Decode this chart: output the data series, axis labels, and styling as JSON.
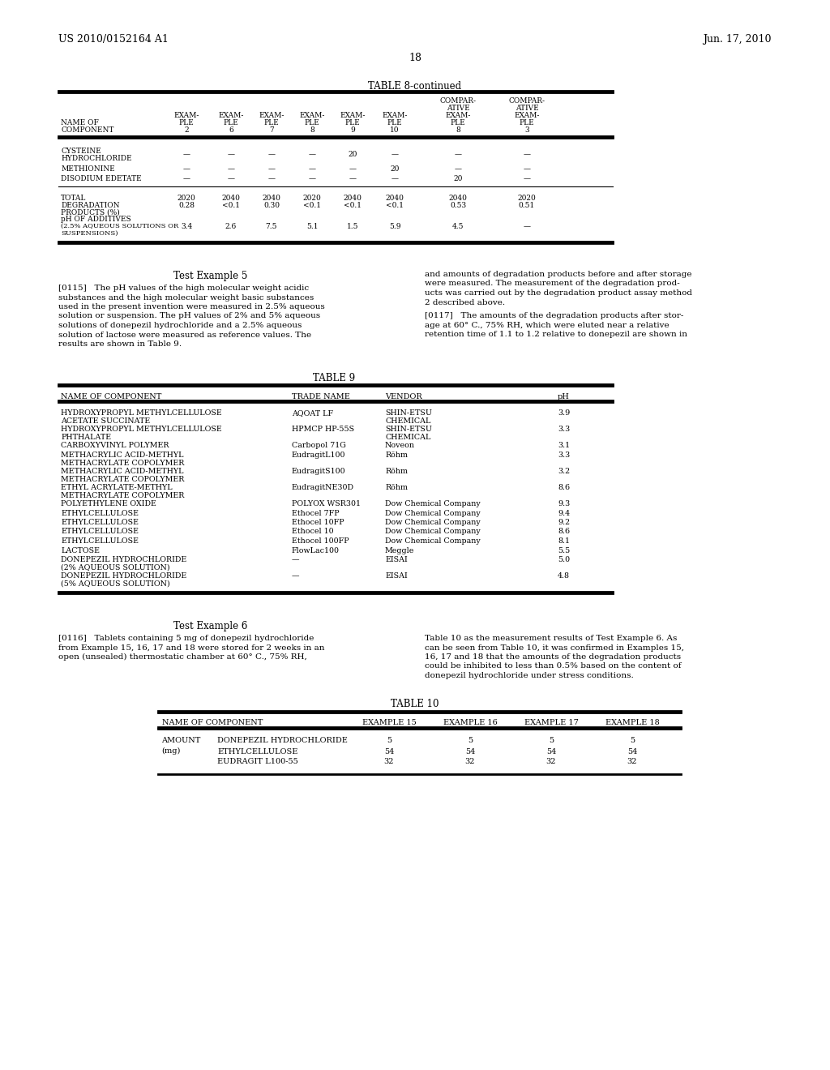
{
  "header_left": "US 2010/0152164 A1",
  "header_right": "Jun. 17, 2010",
  "page_number": "18",
  "bg_color": "#ffffff",
  "text_color": "#000000",
  "table8_title": "TABLE 8-continued",
  "table8_col_headers": [
    "NAME OF\nCOMPONENT",
    "EXAM-\nPLE\n2",
    "EXAM-\nPLE\n6",
    "EXAM-\nPLE\n7",
    "EXAM-\nPLE\n8",
    "EXAM-\nPLE\n9",
    "EXAM-\nPLE\n10",
    "COMPAR-\nATIVE\nEXAM-\nPLE\n8",
    "COMPAR-\nATIVE\nEXAM-\nPLE\n3"
  ],
  "table9_title": "TABLE 9",
  "table9_col_headers": [
    "NAME OF COMPONENT",
    "TRADE NAME",
    "VENDOR",
    "pH"
  ],
  "table9_rows": [
    [
      "HYDROXYPROPYL METHYLCELLULOSE\nACETATE SUCCINATE",
      "AQOAT LF",
      "SHIN-ETSU\nCHEMICAL",
      "3.9"
    ],
    [
      "HYDROXYPROPYL METHYLCELLULOSE\nPHTHALATE",
      "HPMCP HP-55S",
      "SHIN-ETSU\nCHEMICAL",
      "3.3"
    ],
    [
      "CARBOXYVINYL POLYMER",
      "Carbopol 71G",
      "Noveon",
      "3.1"
    ],
    [
      "METHACRYLIC ACID-METHYL\nMETHACRYLATE COPOLYMER",
      "EudragitL100",
      "Röhm",
      "3.3"
    ],
    [
      "METHACRYLIC ACID-METHYL\nMETHACRYLATE COPOLYMER",
      "EudragitS100",
      "Röhm",
      "3.2"
    ],
    [
      "ETHYL ACRYLATE-METHYL\nMETHACRYLATE COPOLYMER",
      "EudragitNE30D",
      "Röhm",
      "8.6"
    ],
    [
      "POLYETHYLENE OXIDE",
      "POLYOX WSR301",
      "Dow Chemical Company",
      "9.3"
    ],
    [
      "ETHYLCELLULOSE",
      "Ethocel 7FP",
      "Dow Chemical Company",
      "9.4"
    ],
    [
      "ETHYLCELLULOSE",
      "Ethocel 10FP",
      "Dow Chemical Company",
      "9.2"
    ],
    [
      "ETHYLCELLULOSE",
      "Ethocel 10",
      "Dow Chemical Company",
      "8.6"
    ],
    [
      "ETHYLCELLULOSE",
      "Ethocel 100FP",
      "Dow Chemical Company",
      "8.1"
    ],
    [
      "LACTOSE",
      "FlowLac100",
      "Meggle",
      "5.5"
    ],
    [
      "DONEPEZIL HYDROCHLORIDE\n(2% AQUEOUS SOLUTION)",
      "—",
      "EISAI",
      "5.0"
    ],
    [
      "DONEPEZIL HYDROCHLORIDE\n(5% AQUEOUS SOLUTION)",
      "—",
      "EISAI",
      "4.8"
    ]
  ],
  "table10_title": "TABLE 10",
  "table10_col_headers": [
    "NAME OF COMPONENT",
    "EXAMPLE 15",
    "EXAMPLE 16",
    "EXAMPLE 17",
    "EXAMPLE 18"
  ],
  "table10_amount_label": "AMOUNT\n(mg)",
  "table10_rows": [
    [
      "DONEPEZIL HYDROCHLORIDE",
      "5",
      "5",
      "5",
      "5"
    ],
    [
      "ETHYLCELLULOSE",
      "54",
      "54",
      "54",
      "54"
    ],
    [
      "EUDRAGIT L100-55",
      "32",
      "32",
      "32",
      "32"
    ]
  ],
  "test5_heading": "Test Example 5",
  "test5_para": "[0115]   The pH values of the high molecular weight acidic\nsubstances and the high molecular weight basic substances\nused in the present invention were measured in 2.5% aqueous\nsolution or suspension. The pH values of 2% and 5% aqueous\nsolutions of donepezil hydrochloride and a 2.5% aqueous\nsolution of lactose were measured as reference values. The\nresults are shown in Table 9.",
  "test5_right1": "and amounts of degradation products before and after storage\nwere measured. The measurement of the degradation prod-\nucts was carried out by the degradation product assay method\n2 described above.",
  "test5_right2": "[0117]   The amounts of the degradation products after stor-\nage at 60° C., 75% RH, which were eluted near a relative\nretention time of 1.1 to 1.2 relative to donepezil are shown in",
  "test6_heading": "Test Example 6",
  "test6_para": "[0116]   Tablets containing 5 mg of donepezil hydrochloride\nfrom Example 15, 16, 17 and 18 were stored for 2 weeks in an\nopen (unsealed) thermostatic chamber at 60° C., 75% RH,",
  "test6_right": "Table 10 as the measurement results of Test Example 6. As\ncan be seen from Table 10, it was confirmed in Examples 15,\n16, 17 and 18 that the amounts of the degradation products\ncould be inhibited to less than 0.5% based on the content of\ndonepezil hydrochloride under stress conditions."
}
